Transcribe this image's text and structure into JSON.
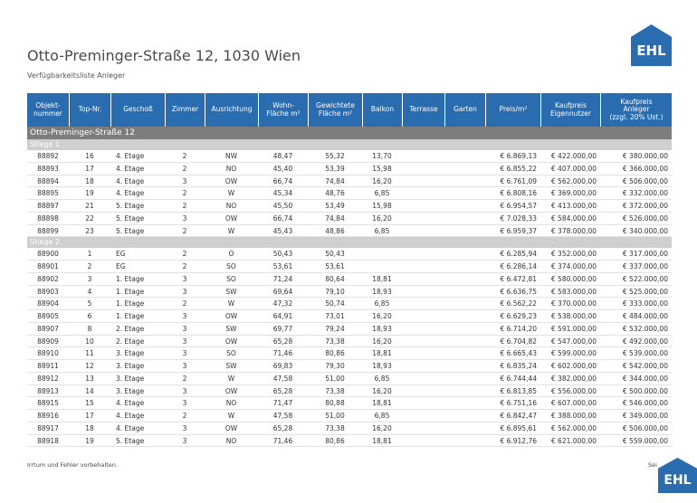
{
  "header": {
    "title": "Otto-Preminger-Straße 12, 1030 Wien",
    "subtitle": "Verfügbarkeitsliste Anleger"
  },
  "logos": [
    "EHL",
    "EHL"
  ],
  "table": {
    "columns": [
      "Objekt-\nnummer",
      "Top-Nr.",
      "Geschoß",
      "Zimmer",
      "Ausrichtung",
      "Wohn-\nFläche m²",
      "Gewichtete\nFläche m²",
      "Balkon",
      "Terrasse",
      "Garten",
      "Preis/m²",
      "Kaufpreis\nEigennutzer",
      "Kaufpreis\nAnleger\n(zzgl. 20% Ust.)"
    ],
    "group": "Otto-Preminger-Straße 12",
    "sections": [
      {
        "name": "Stiege 1",
        "rows": [
          [
            "88892",
            "16",
            "4. Etage",
            "2",
            "NW",
            "48,47",
            "55,32",
            "13,70",
            "€ 6.869,13",
            "€ 422.000,00",
            "€ 380.000,00"
          ],
          [
            "88893",
            "17",
            "4. Etage",
            "2",
            "NO",
            "45,40",
            "53,39",
            "15,98",
            "€ 6.855,22",
            "€ 407.000,00",
            "€ 366.000,00"
          ],
          [
            "88894",
            "18",
            "4. Etage",
            "3",
            "OW",
            "66,74",
            "74,84",
            "16,20",
            "€ 6.761,09",
            "€ 562.000,00",
            "€ 506.000,00"
          ],
          [
            "88895",
            "19",
            "4. Etage",
            "2",
            "W",
            "45,34",
            "48,76",
            "6,85",
            "€ 6.808,16",
            "€ 369.000,00",
            "€ 332.000,00"
          ],
          [
            "88897",
            "21",
            "5. Etage",
            "2",
            "NO",
            "45,50",
            "53,49",
            "15,98",
            "€ 6.954,57",
            "€ 413.000,00",
            "€ 372.000,00"
          ],
          [
            "88898",
            "22",
            "5. Etage",
            "3",
            "OW",
            "66,74",
            "74,84",
            "16,20",
            "€ 7.028,33",
            "€ 584.000,00",
            "€ 526.000,00"
          ],
          [
            "88899",
            "23",
            "5. Etage",
            "2",
            "W",
            "45,43",
            "48,86",
            "6,85",
            "€ 6.959,37",
            "€ 378.000,00",
            "€ 340.000,00"
          ]
        ]
      },
      {
        "name": "Stiege 2",
        "rows": [
          [
            "88900",
            "1",
            "EG",
            "2",
            "O",
            "50,43",
            "50,43",
            null,
            "€ 6.285,94",
            "€ 352.000,00",
            "€ 317.000,00"
          ],
          [
            "88901",
            "2",
            "EG",
            "2",
            "SO",
            "53,61",
            "53,61",
            null,
            "€ 6.286,14",
            "€ 374.000,00",
            "€ 337.000,00"
          ],
          [
            "88902",
            "3",
            "1. Etage",
            "3",
            "SO",
            "71,24",
            "80,64",
            "18,81",
            "€ 6.472,81",
            "€ 580.000,00",
            "€ 522.000,00"
          ],
          [
            "88903",
            "4",
            "1. Etage",
            "3",
            "SW",
            "69,64",
            "79,10",
            "18,93",
            "€ 6.636,75",
            "€ 583.000,00",
            "€ 525.000,00"
          ],
          [
            "88904",
            "5",
            "1. Etage",
            "2",
            "W",
            "47,32",
            "50,74",
            "6,85",
            "€ 6.562,22",
            "€ 370.000,00",
            "€ 333.000,00"
          ],
          [
            "88905",
            "6",
            "1. Etage",
            "3",
            "OW",
            "64,91",
            "73,01",
            "16,20",
            "€ 6.629,23",
            "€ 538.000,00",
            "€ 484.000,00"
          ],
          [
            "88907",
            "8",
            "2. Etage",
            "3",
            "SW",
            "69,77",
            "79,24",
            "18,93",
            "€ 6.714,20",
            "€ 591.000,00",
            "€ 532.000,00"
          ],
          [
            "88909",
            "10",
            "2. Etage",
            "3",
            "OW",
            "65,28",
            "73,38",
            "16,20",
            "€ 6.704,82",
            "€ 547.000,00",
            "€ 492.000,00"
          ],
          [
            "88910",
            "11",
            "3. Etage",
            "3",
            "SO",
            "71,46",
            "80,86",
            "18,81",
            "€ 6.665,43",
            "€ 599.000,00",
            "€ 539.000,00"
          ],
          [
            "88911",
            "12",
            "3. Etage",
            "3",
            "SW",
            "69,83",
            "79,30",
            "18,93",
            "€ 6.835,24",
            "€ 602.000,00",
            "€ 542.000,00"
          ],
          [
            "88912",
            "13",
            "3. Etage",
            "2",
            "W",
            "47,58",
            "51,00",
            "6,85",
            "€ 6.744,44",
            "€ 382.000,00",
            "€ 344.000,00"
          ],
          [
            "88913",
            "14",
            "3. Etage",
            "3",
            "OW",
            "65,28",
            "73,38",
            "16,20",
            "€ 6.813,85",
            "€ 556.000,00",
            "€ 500.000,00"
          ],
          [
            "88915",
            "15",
            "4. Etage",
            "3",
            "NO",
            "71,47",
            "80,88",
            "18,81",
            "€ 6.751,16",
            "€ 607.000,00",
            "€ 546.000,00"
          ],
          [
            "88916",
            "17",
            "4. Etage",
            "2",
            "W",
            "47,58",
            "51,00",
            "6,85",
            "€ 6.842,47",
            "€ 388.000,00",
            "€ 349.000,00"
          ],
          [
            "88917",
            "18",
            "4. Etage",
            "3",
            "OW",
            "65,28",
            "73,38",
            "16,20",
            "€ 6.895,61",
            "€ 562.000,00",
            "€ 506.000,00"
          ],
          [
            "88918",
            "19",
            "5. Etage",
            "3",
            "NO",
            "71,46",
            "80,86",
            "18,81",
            "€ 6.912,76",
            "€ 621.000,00",
            "€ 559.000,00"
          ]
        ]
      }
    ]
  },
  "footer": {
    "note": "Irrtum und Fehler vorbehalten.",
    "page": "Sei"
  }
}
